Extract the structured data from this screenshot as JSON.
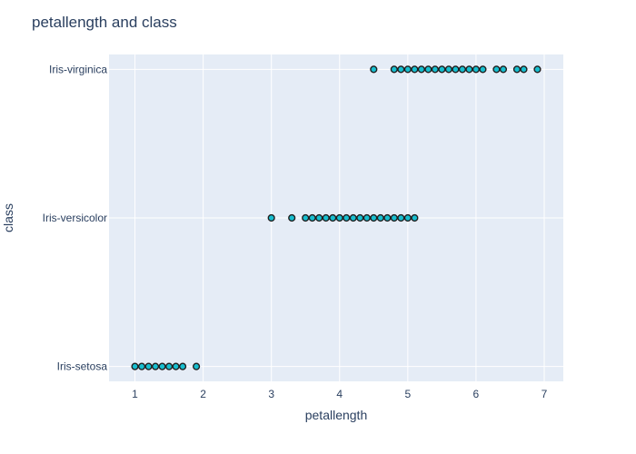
{
  "chart_data": {
    "type": "scatter",
    "title": "petallength and class",
    "xlabel": "petallength",
    "ylabel": "class",
    "xlim": [
      0.62,
      7.28
    ],
    "x_ticks": [
      1,
      2,
      3,
      4,
      5,
      6,
      7
    ],
    "categories": [
      "Iris-setosa",
      "Iris-versicolor",
      "Iris-virginica"
    ],
    "grid": true,
    "legend": "none",
    "colors": {
      "plot_background": "#e5ecf6",
      "marker_fill": "#17becf",
      "marker_edge": "#1f1f1f",
      "text": "#2a3f5f",
      "grid": "#ffffff"
    },
    "series": [
      {
        "category": "Iris-setosa",
        "x": [
          1.0,
          1.1,
          1.2,
          1.3,
          1.4,
          1.5,
          1.6,
          1.7,
          1.9
        ]
      },
      {
        "category": "Iris-versicolor",
        "x": [
          3.0,
          3.3,
          3.5,
          3.6,
          3.7,
          3.8,
          3.9,
          4.0,
          4.1,
          4.2,
          4.3,
          4.4,
          4.5,
          4.6,
          4.7,
          4.8,
          4.9,
          5.0,
          5.1
        ]
      },
      {
        "category": "Iris-virginica",
        "x": [
          4.5,
          4.8,
          4.9,
          5.0,
          5.1,
          5.2,
          5.3,
          5.4,
          5.5,
          5.6,
          5.7,
          5.8,
          5.9,
          6.0,
          6.1,
          6.3,
          6.4,
          6.6,
          6.7,
          6.9
        ]
      }
    ]
  }
}
